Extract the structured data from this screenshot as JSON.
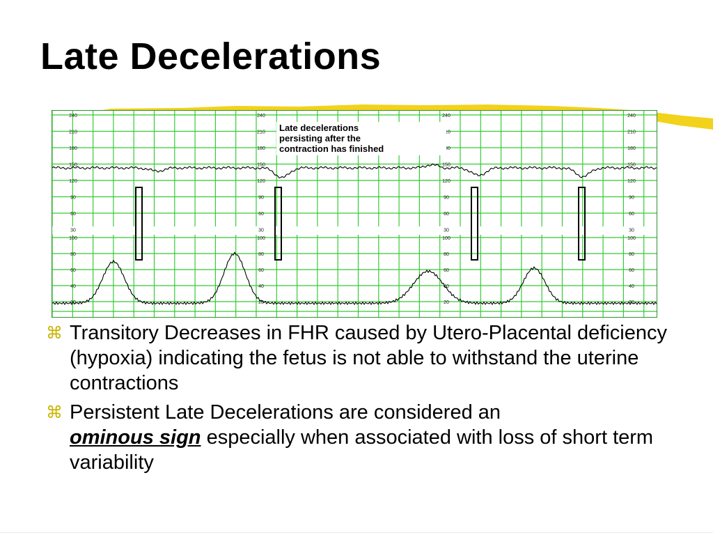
{
  "slide": {
    "title": "Late Decelerations",
    "bullet_icon": "command-key-icon",
    "bullet_color": "#C9B400",
    "accent_stroke_color": "#F2D21B",
    "bullets": [
      {
        "text": "Transitory Decreases in FHR caused by Utero-Placental deficiency (hypoxia) indicating the fetus is not able to withstand the uterine contractions"
      },
      {
        "before": "Persistent Late Decelerations are considered an",
        "emphasis": "ominous sign",
        "after": "especially when associated with loss of short term variability"
      }
    ]
  },
  "figure": {
    "grid_color": "#33CC33",
    "trace_color": "#000000",
    "annotation": [
      "Late decelerations",
      "persisting after the",
      "contraction has finished"
    ],
    "fhr_ticks": [
      "240",
      "210",
      "180",
      "150",
      "120",
      "90",
      "60",
      "30"
    ],
    "uc_ticks": [
      "100",
      "80",
      "60",
      "40",
      "20"
    ],
    "marked_late_decelerations": 4
  }
}
